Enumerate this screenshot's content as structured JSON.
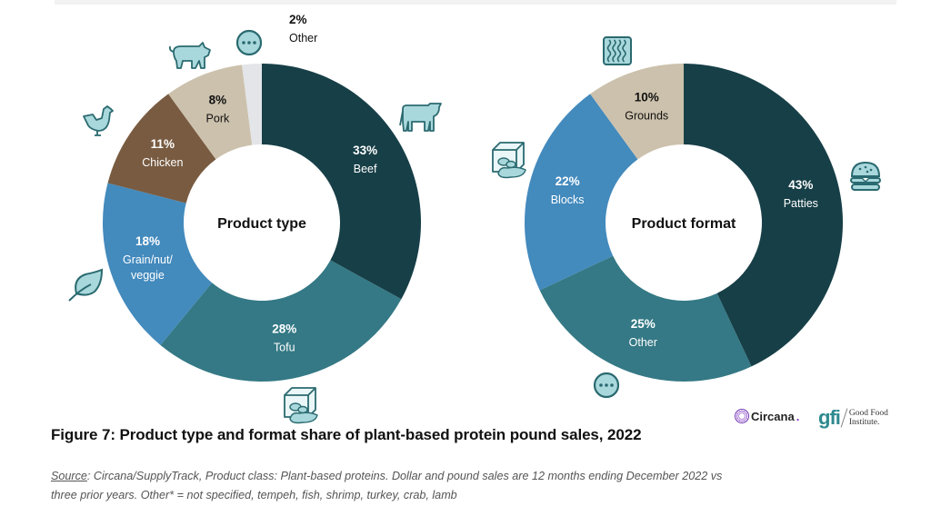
{
  "chart_data": [
    {
      "type": "pie",
      "variant": "donut",
      "title": "Product type",
      "categories": [
        "Beef",
        "Tofu",
        "Grain/nut/veggie",
        "Chicken",
        "Pork",
        "Other"
      ],
      "values": [
        33,
        28,
        18,
        11,
        8,
        2
      ],
      "labels": [
        "33%",
        "28%",
        "18%",
        "11%",
        "8%",
        "2%"
      ],
      "label_names": [
        "Beef",
        "Tofu",
        "Grain/nut/ veggie",
        "Chicken",
        "Pork",
        "Other"
      ],
      "colors": [
        "#173f47",
        "#347985",
        "#438abd",
        "#785b41",
        "#ccc1ac",
        "#e3e5e8"
      ],
      "label_colors": [
        "#ffffff",
        "#ffffff",
        "#ffffff",
        "#ffffff",
        "#111111",
        "#111111"
      ],
      "icons": [
        "cow-icon",
        "tofu-icon",
        "leaf-icon",
        "chicken-icon",
        "pig-icon",
        "ellipsis-icon"
      ],
      "start": "12 o'clock, clockwise"
    },
    {
      "type": "pie",
      "variant": "donut",
      "title": "Product format",
      "categories": [
        "Patties",
        "Other",
        "Blocks",
        "Grounds"
      ],
      "values": [
        43,
        25,
        22,
        10
      ],
      "labels": [
        "43%",
        "25%",
        "22%",
        "10%"
      ],
      "label_names": [
        "Patties",
        "Other",
        "Blocks",
        "Grounds"
      ],
      "colors": [
        "#173f47",
        "#347985",
        "#438abd",
        "#ccc1ac"
      ],
      "label_colors": [
        "#ffffff",
        "#ffffff",
        "#ffffff",
        "#111111"
      ],
      "icons": [
        "burger-icon",
        "ellipsis-icon",
        "tofu-icon",
        "grounds-icon"
      ],
      "start": "12 o'clock, clockwise"
    }
  ],
  "figure": {
    "title": "Figure 7: Product type and format share of plant-based protein pound sales, 2022",
    "source_label": "Source",
    "source_text": ": Circana/SupplyTrack, Product class: Plant-based proteins. Dollar and pound sales are 12 months ending December 2022 vs three prior years. Other* = not specified, tempeh, fish, shrimp, turkey, crab, lamb"
  },
  "logos": {
    "circana": "Circana",
    "circana_dot": ".",
    "gfi_mark": "gfi",
    "gfi_line1": "Good Food",
    "gfi_line2": "Institute."
  },
  "icon_colors": {
    "fill": "#a9d8dc",
    "stroke": "#2a6a70"
  }
}
